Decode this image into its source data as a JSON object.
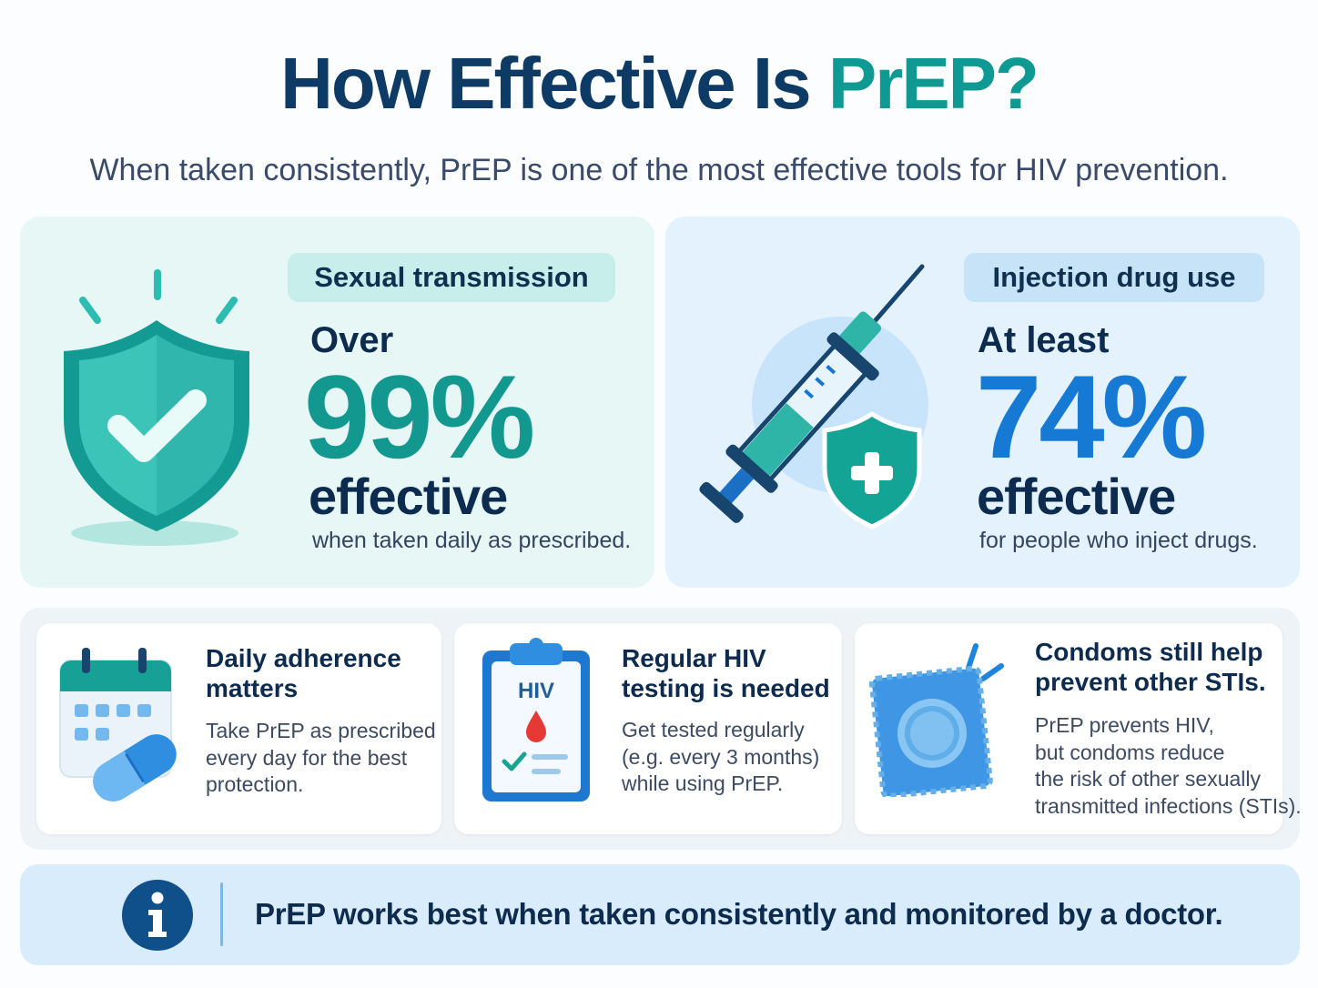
{
  "header": {
    "title_main": "How Effective Is ",
    "title_accent": "PrEP?",
    "subtitle": "When taken consistently, PrEP is one of the most effective tools for HIV prevention."
  },
  "stats": [
    {
      "label": "Sexual transmission",
      "prefix": "Over",
      "value": "99%",
      "suffix": "effective",
      "note": "when taken daily as prescribed.",
      "icon": "shield-check-icon"
    },
    {
      "label": "Injection drug use",
      "prefix": "At least",
      "value": "74%",
      "suffix": "effective",
      "note": "for people who inject drugs.",
      "icon": "syringe-icon"
    }
  ],
  "tips": [
    {
      "title": "Daily adherence matters",
      "title_lines": [
        "Daily adherence",
        "matters"
      ],
      "text_lines": [
        "Take PrEP as prescribed",
        "every day for the best",
        "protection."
      ],
      "icon": "calendar-pill-icon"
    },
    {
      "title_lines": [
        "Regular HIV",
        "testing is needed"
      ],
      "text_lines": [
        "Get tested regularly",
        "(e.g. every 3 months)",
        "while using PrEP."
      ],
      "icon": "clipboard-test-icon",
      "badge": "HIV"
    },
    {
      "title_lines": [
        "Condoms still help",
        "prevent other STIs."
      ],
      "text_lines": [
        "PrEP prevents HIV,",
        "but condoms reduce",
        "the risk of other sexually",
        "transmitted infections (STIs)."
      ],
      "icon": "condom-package-icon"
    }
  ],
  "banner": {
    "text": "PrEP works best when taken consistently and monitored by a doctor.",
    "icon": "info-icon"
  },
  "colors": {
    "navy": "#0d3b66",
    "teal": "#0e9a92",
    "blue": "#1677d2"
  }
}
